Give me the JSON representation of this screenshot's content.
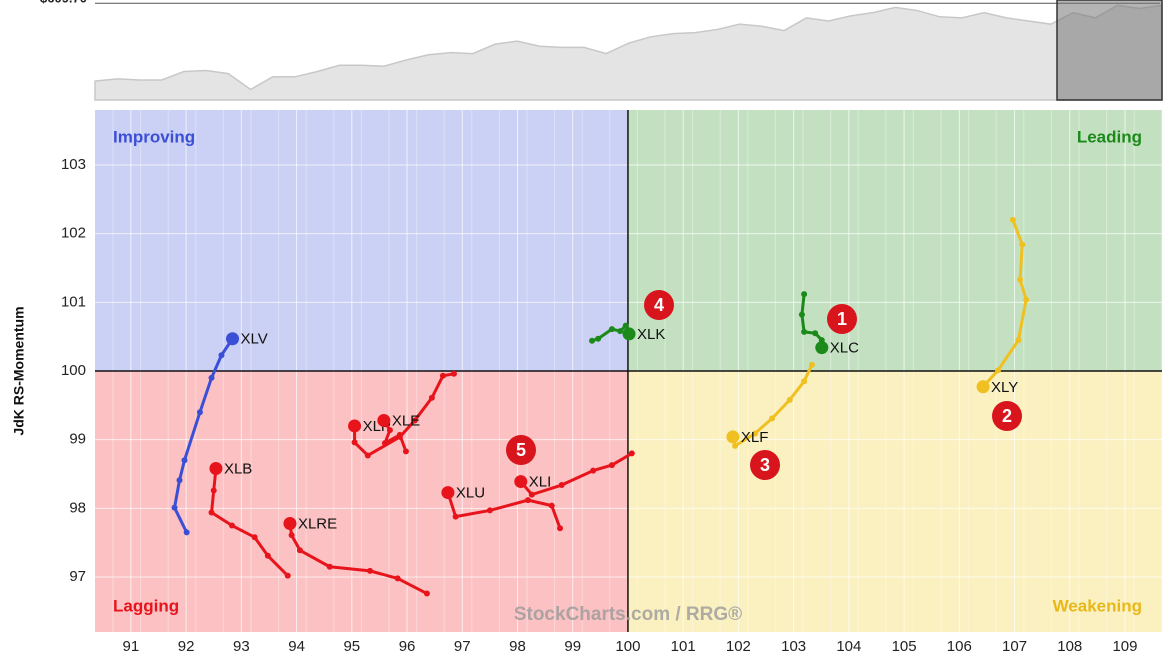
{
  "chart_data": [
    {
      "type": "area",
      "color": "#e4e4e4",
      "line": "#c8c8c8",
      "ylim": [
        540,
        612
      ],
      "yticks": [
        {
          "value": 609.7,
          "label": "$609.70"
        }
      ],
      "values": [
        553.6,
        555.2,
        554.4,
        554.4,
        560.5,
        561.2,
        559.0,
        547.6,
        556.7,
        556.7,
        560.5,
        565.0,
        565.0,
        564.3,
        568.8,
        572.6,
        574.1,
        573.4,
        580.2,
        582.4,
        578.7,
        577.9,
        577.9,
        573.4,
        580.9,
        585.5,
        587.8,
        588.5,
        590.8,
        594.6,
        593.1,
        590.0,
        599.1,
        596.9,
        600.6,
        602.9,
        606.7,
        604.4,
        599.9,
        599.1,
        602.9,
        599.1,
        596.9,
        594.6,
        602.9,
        599.1,
        608.2,
        605.9,
        608.2
      ]
    },
    {
      "type": "rrg",
      "y_label": "JdK RS-Momentum",
      "xlim": [
        90.35,
        109.67
      ],
      "ylim": [
        96.2,
        103.8
      ],
      "xticks": [
        91,
        92,
        93,
        94,
        95,
        96,
        97,
        98,
        99,
        100,
        101,
        102,
        103,
        104,
        105,
        106,
        107,
        108,
        109
      ],
      "yticks": [
        97,
        98,
        99,
        100,
        101,
        102,
        103
      ],
      "center": [
        100,
        100
      ],
      "quadrants": [
        {
          "label": "Improving",
          "color": "#3a4fd6",
          "fill": "#cbd0f5"
        },
        {
          "label": "Leading",
          "color": "#1b8a1b",
          "fill": "#c3e1c1"
        },
        {
          "label": "Lagging",
          "color": "#e8141c",
          "fill": "#fbc1c3"
        },
        {
          "label": "Weakening",
          "color": "#e8b818",
          "fill": "#fbf0c0"
        }
      ],
      "watermark": "StockCharts.com / RRG®",
      "annotations": [
        "1",
        "2",
        "3",
        "4",
        "5"
      ],
      "series": [
        {
          "name": "XLV",
          "color": "#3a4fd6",
          "x": [
            92.01,
            91.79,
            91.88,
            91.97,
            92.25,
            92.46,
            92.64,
            92.84
          ],
          "y": [
            97.65,
            98.01,
            98.41,
            98.7,
            99.4,
            99.9,
            100.23,
            100.47
          ]
        },
        {
          "name": "XLB",
          "color": "#e8141c",
          "x": [
            93.84,
            93.48,
            93.24,
            92.83,
            92.46,
            92.5,
            92.54
          ],
          "y": [
            97.02,
            97.31,
            97.58,
            97.75,
            97.94,
            98.26,
            98.58
          ]
        },
        {
          "name": "XLRE",
          "color": "#e8141c",
          "x": [
            96.36,
            95.83,
            95.33,
            94.6,
            94.06,
            93.91,
            93.88
          ],
          "y": [
            96.76,
            96.98,
            97.09,
            97.15,
            97.39,
            97.61,
            97.78
          ]
        },
        {
          "name": "XLP",
          "color": "#e8141c",
          "x": [
            96.85,
            96.65,
            96.45,
            96.14,
            95.87,
            95.29,
            95.05,
            95.05
          ],
          "y": [
            99.96,
            99.93,
            99.61,
            99.28,
            99.04,
            98.77,
            98.96,
            99.2
          ]
        },
        {
          "name": "XLE",
          "color": "#e8141c",
          "x": [
            95.98,
            95.87,
            95.6,
            95.69,
            95.58
          ],
          "y": [
            98.83,
            99.07,
            98.95,
            99.14,
            99.28
          ]
        },
        {
          "name": "XLU",
          "color": "#e8141c",
          "x": [
            98.77,
            98.62,
            98.19,
            97.5,
            96.88,
            96.74
          ],
          "y": [
            97.71,
            98.04,
            98.12,
            97.97,
            97.88,
            98.23
          ]
        },
        {
          "name": "XLI",
          "color": "#e8141c",
          "x": [
            100.07,
            99.71,
            99.37,
            98.8,
            98.26,
            98.06
          ],
          "y": [
            98.8,
            98.63,
            98.55,
            98.34,
            98.2,
            98.39
          ]
        },
        {
          "name": "XLK",
          "color": "#1b8a1b",
          "x": [
            99.35,
            99.46,
            99.71,
            99.86,
            99.96,
            100.02
          ],
          "y": [
            100.44,
            100.47,
            100.61,
            100.58,
            100.66,
            100.54
          ]
        },
        {
          "name": "XLC",
          "color": "#1b8a1b",
          "x": [
            103.19,
            103.15,
            103.19,
            103.39,
            103.51,
            103.51
          ],
          "y": [
            101.12,
            100.82,
            100.57,
            100.55,
            100.45,
            100.34
          ]
        },
        {
          "name": "XLF",
          "color": "#f0c020",
          "x": [
            103.33,
            103.19,
            102.93,
            102.61,
            102.3,
            101.94,
            101.9
          ],
          "y": [
            100.09,
            99.85,
            99.58,
            99.31,
            99.09,
            98.91,
            99.04
          ]
        },
        {
          "name": "XLY",
          "color": "#f0c020",
          "x": [
            106.97,
            107.14,
            107.1,
            107.21,
            107.07,
            106.7,
            106.43
          ],
          "y": [
            102.2,
            101.84,
            101.33,
            101.04,
            100.45,
            100.01,
            99.77
          ]
        }
      ]
    }
  ]
}
